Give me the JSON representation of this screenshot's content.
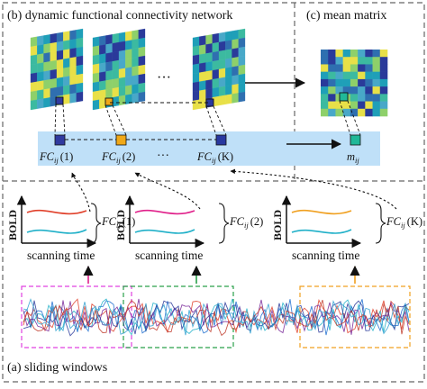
{
  "panels": {
    "dfc_title": "(b) dynamic functional connectivity network",
    "mean_title": "(c) mean matrix",
    "sliding_title": "(a) sliding windows"
  },
  "fc_labels": [
    {
      "base": "FC",
      "sub": "ij",
      "arg": "(1)"
    },
    {
      "base": "FC",
      "sub": "ij",
      "arg": "(2)"
    },
    {
      "base": "FC",
      "sub": "ij",
      "arg": "(K)"
    }
  ],
  "window_fc_labels": [
    {
      "base": "FC",
      "sub": "ij",
      "arg": "(1)"
    },
    {
      "base": "FC",
      "sub": "ij",
      "arg": "(2)"
    },
    {
      "base": "FC",
      "sub": "ij",
      "arg": "(K)"
    }
  ],
  "mean_label": {
    "base": "m",
    "sub": "ij"
  },
  "ellipsis": "···",
  "axes": {
    "y_label": "BOLD",
    "x_label": "scanning time"
  },
  "colors": {
    "window_1": "#e040e0",
    "window_2": "#2aa04a",
    "window_3": "#f0a020",
    "highlight_band": "#bfe0f8",
    "signal_red": "#e0402a",
    "signal_cyan": "#20b0c8",
    "signal_magenta": "#e0208a",
    "signal_orange": "#f0a020",
    "selected_fc1": "#303aa0",
    "selected_fc2": "#f0a818",
    "selected_fck": "#2838a0",
    "selected_mean": "#20b898"
  }
}
